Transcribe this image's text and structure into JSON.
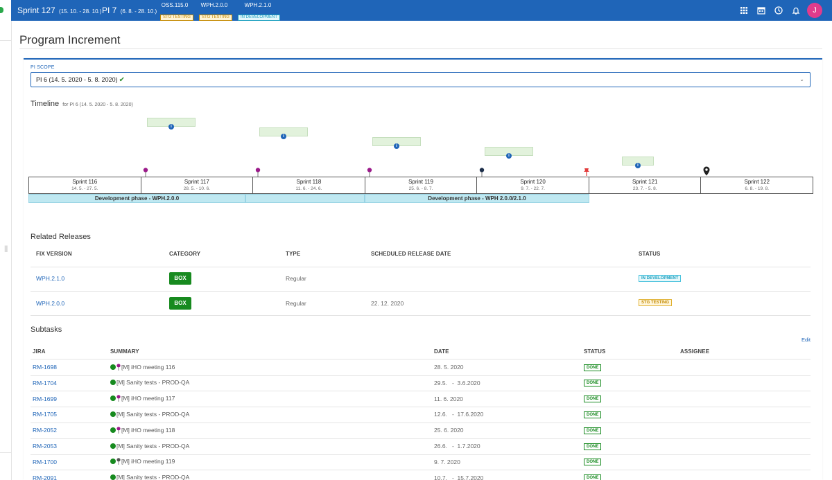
{
  "topbar": {
    "sprint": "Sprint 127",
    "sprint_dates": "(15. 10. - 28. 10.)",
    "pi": "PI 7",
    "pi_dates": "(6. 8. - 28. 10.)",
    "versions": [
      {
        "name": "OSS.115.0",
        "status": "STG TESTING"
      },
      {
        "name": "WPH.2.0.0",
        "status": "STG TESTING"
      },
      {
        "name": "WPH.2.1.0",
        "status": "IN DEVELOPMENT"
      }
    ],
    "icons": [
      "apps-grid-icon",
      "calendar-icon",
      "clock-icon",
      "bell-icon"
    ],
    "avatar": "J",
    "color": "#1f65b8"
  },
  "page": {
    "title": "Program Increment"
  },
  "pi_scope": {
    "label": "PI SCOPE",
    "value": "PI 6 (14. 5. 2020 - 5. 8. 2020)"
  },
  "timeline": {
    "title": "Timeline",
    "subtitle": "for PI 6 (14. 5. 2020 - 5. 8. 2020)",
    "sprints": [
      {
        "name": "Sprint 116",
        "dates": "14. 5. - 27. 5."
      },
      {
        "name": "Sprint 117",
        "dates": "28. 5. - 10. 6."
      },
      {
        "name": "Sprint 118",
        "dates": "11. 6. - 24. 6."
      },
      {
        "name": "Sprint 119",
        "dates": "25. 6. - 8. 7."
      },
      {
        "name": "Sprint 120",
        "dates": "9. 7. - 22. 7."
      },
      {
        "name": "Sprint 121",
        "dates": "23. 7. - 5. 8."
      },
      {
        "name": "Sprint 122",
        "dates": "6. 8. - 19. 8."
      }
    ],
    "phases": [
      {
        "label": "Development phase - WPH.2.0.0"
      },
      {
        "label": "Development phase - WPH 2.0.0/2.1.0"
      }
    ]
  },
  "releases": {
    "title": "Related Releases",
    "headers": [
      "FIX VERSION",
      "CATEGORY",
      "TYPE",
      "SCHEDULED RELEASE DATE",
      "STATUS"
    ],
    "rows": [
      {
        "version": "WPH.2.1.0",
        "category": "BOX",
        "type": "Regular",
        "date": "",
        "status": "IN DEVELOPMENT"
      },
      {
        "version": "WPH.2.0.0",
        "category": "BOX",
        "type": "Regular",
        "date": "22. 12. 2020",
        "status": "STG TESTING"
      }
    ]
  },
  "subtasks": {
    "title": "Subtasks",
    "edit": "Edit",
    "headers": [
      "JIRA",
      "SUMMARY",
      "DATE",
      "STATUS",
      "ASSIGNEE"
    ],
    "rows": [
      {
        "key": "RM-1698",
        "summary": "[M] iHO meeting 116",
        "date": "28. 5. 2020",
        "status": "DONE",
        "pin": true
      },
      {
        "key": "RM-1704",
        "summary": "[M] Sanity tests - PROD-QA",
        "date": "29.5.   -  3.6.2020",
        "status": "DONE",
        "pin": false
      },
      {
        "key": "RM-1699",
        "summary": "[M] iHO meeting 117",
        "date": "11. 6. 2020",
        "status": "DONE",
        "pin": true
      },
      {
        "key": "RM-1705",
        "summary": "[M] Sanity tests - PROD-QA",
        "date": "12.6.   -  17.6.2020",
        "status": "DONE",
        "pin": false
      },
      {
        "key": "RM-2052",
        "summary": "[M] iHO meeting 118",
        "date": "25. 6. 2020",
        "status": "DONE",
        "pin": true
      },
      {
        "key": "RM-2053",
        "summary": "[M] Sanity tests - PROD-QA",
        "date": "26.6.   -  1.7.2020",
        "status": "DONE",
        "pin": false
      },
      {
        "key": "RM-1700",
        "summary": "[M] iHO meeting 119",
        "date": "9. 7. 2020",
        "status": "DONE",
        "pin": true
      },
      {
        "key": "RM-2091",
        "summary": "[M] Sanity tests - PROD-QA",
        "date": "10.7.   -  15.7.2020",
        "status": "DONE",
        "pin": false
      }
    ]
  }
}
